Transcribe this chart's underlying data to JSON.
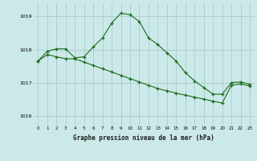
{
  "title": "Graphe pression niveau de la mer (hPa)",
  "bg_color": "#cce9e9",
  "grid_color": "#aacccc",
  "line_color": "#1a6b1a",
  "marker": "+",
  "xlim": [
    -0.5,
    23.5
  ],
  "ylim": [
    1015.7,
    1019.4
  ],
  "yticks": [
    1016,
    1017,
    1018,
    1019
  ],
  "xticks": [
    0,
    1,
    2,
    3,
    4,
    5,
    6,
    7,
    8,
    9,
    10,
    11,
    12,
    13,
    14,
    15,
    16,
    17,
    18,
    19,
    20,
    21,
    22,
    23
  ],
  "series1_x": [
    0,
    1,
    2,
    3,
    4,
    5,
    6,
    7,
    8,
    9,
    10,
    11,
    12,
    13,
    14,
    15,
    16,
    17,
    18,
    19,
    20,
    21,
    22,
    23
  ],
  "series1_y": [
    1017.65,
    1017.95,
    1018.02,
    1018.02,
    1017.75,
    1017.78,
    1018.08,
    1018.35,
    1018.8,
    1019.1,
    1019.05,
    1018.85,
    1018.35,
    1018.15,
    1017.9,
    1017.65,
    1017.3,
    1017.05,
    1016.85,
    1016.65,
    1016.65,
    1017.0,
    1017.02,
    1016.95
  ],
  "series2_x": [
    0,
    1,
    2,
    3,
    4,
    5,
    6,
    7,
    8,
    9,
    10,
    11,
    12,
    13,
    14,
    15,
    16,
    17,
    18,
    19,
    20,
    21,
    22,
    23
  ],
  "series2_y": [
    1017.65,
    1017.85,
    1017.78,
    1017.72,
    1017.72,
    1017.62,
    1017.52,
    1017.42,
    1017.32,
    1017.22,
    1017.12,
    1017.02,
    1016.92,
    1016.82,
    1016.75,
    1016.68,
    1016.62,
    1016.56,
    1016.5,
    1016.44,
    1016.38,
    1016.92,
    1016.96,
    1016.9
  ]
}
